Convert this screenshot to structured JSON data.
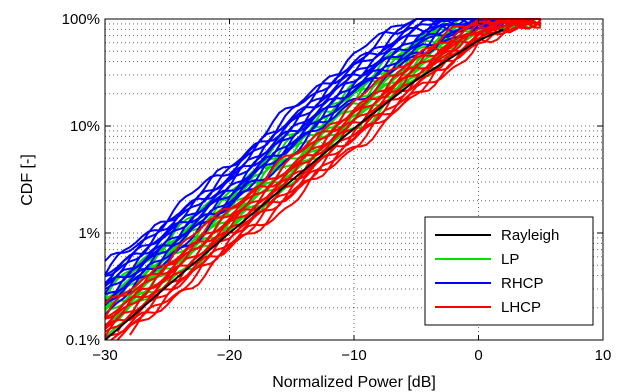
{
  "chart_data": {
    "type": "line",
    "title": "",
    "xlabel": "Normalized Power [dB]",
    "ylabel": "CDF [-]",
    "xlim": [
      -30,
      10
    ],
    "ylim": [
      0.001,
      1
    ],
    "y_scale": "log",
    "grid": "dotted",
    "legend_position": "bottom-right",
    "x_ticks": [
      -30,
      -20,
      -10,
      0,
      10
    ],
    "x_tick_labels": [
      "−30",
      "−20",
      "−10",
      "0",
      "10"
    ],
    "y_ticks": [
      0.001,
      0.01,
      0.1,
      1
    ],
    "y_tick_labels": [
      "0.1%",
      "1%",
      "10%",
      "100%"
    ],
    "series": [
      {
        "name": "Rayleigh",
        "color": "#000000",
        "count": 1,
        "x": [
          -30,
          -25,
          -20,
          -15,
          -10,
          -5,
          0,
          2
        ],
        "y": [
          0.001,
          0.0032,
          0.01,
          0.031,
          0.095,
          0.27,
          0.63,
          0.8
        ]
      },
      {
        "name": "LP",
        "color": "#00e000",
        "count": 14,
        "x": [
          -30,
          -25,
          -20,
          -15,
          -10,
          -5,
          0,
          3,
          5
        ],
        "y": [
          0.0018,
          0.0055,
          0.016,
          0.05,
          0.15,
          0.42,
          0.93,
          1,
          1
        ]
      },
      {
        "name": "RHCP",
        "color": "#0000ff",
        "count": 14,
        "x": [
          -30,
          -25,
          -20,
          -15,
          -10,
          -5,
          -3,
          0,
          2
        ],
        "y": [
          0.003,
          0.009,
          0.027,
          0.09,
          0.28,
          0.7,
          0.9,
          1,
          1
        ]
      },
      {
        "name": "LHCP",
        "color": "#ff0000",
        "count": 14,
        "x": [
          -30,
          -25,
          -20,
          -15,
          -10,
          -5,
          0,
          3,
          5
        ],
        "y": [
          0.0012,
          0.0035,
          0.011,
          0.032,
          0.1,
          0.3,
          0.75,
          0.97,
          1
        ]
      }
    ]
  }
}
